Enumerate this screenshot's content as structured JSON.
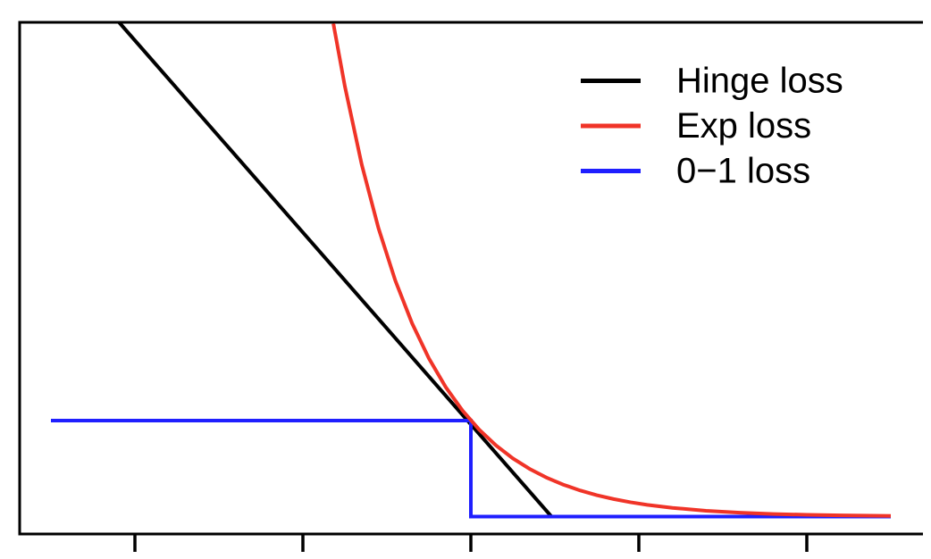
{
  "chart_data": {
    "type": "line",
    "title": "",
    "xlabel": "",
    "ylabel": "",
    "x_axis": {
      "ticks": [
        -2,
        -1,
        0,
        1,
        2
      ],
      "tick_labels": [
        "",
        "",
        "",
        "",
        ""
      ],
      "visible_range": [
        -2.69,
        2.69
      ]
    },
    "y_axis": {
      "ticks": [],
      "tick_labels": [],
      "visible_range": [
        -0.19,
        5.33
      ]
    },
    "grid": false,
    "background": "#ffffff",
    "axis_color": "#000000",
    "legend_position": "top-right",
    "series": [
      {
        "name": "Hinge loss",
        "color": "#000000",
        "formula": "max(0, 1 - 2x)",
        "points": [
          [
            -2.095,
            5.15
          ],
          [
            0.48,
            0
          ],
          [
            2.5,
            0
          ]
        ]
      },
      {
        "name": "Exp loss",
        "color": "#f03428",
        "formula": "exp(-2x)",
        "points": [
          [
            -0.8185,
            5.135
          ],
          [
            -0.75,
            4.4817
          ],
          [
            -0.65,
            3.6693
          ],
          [
            -0.55,
            3.0042
          ],
          [
            -0.45,
            2.4596
          ],
          [
            -0.35,
            2.0138
          ],
          [
            -0.25,
            1.6487
          ],
          [
            -0.15,
            1.3499
          ],
          [
            -0.05,
            1.1052
          ],
          [
            0.05,
            0.9048
          ],
          [
            0.15,
            0.7408
          ],
          [
            0.25,
            0.6065
          ],
          [
            0.35,
            0.4966
          ],
          [
            0.45,
            0.4066
          ],
          [
            0.55,
            0.3329
          ],
          [
            0.65,
            0.2725
          ],
          [
            0.75,
            0.2231
          ],
          [
            0.85,
            0.1827
          ],
          [
            0.95,
            0.1496
          ],
          [
            1.05,
            0.1225
          ],
          [
            1.2,
            0.0907
          ],
          [
            1.4,
            0.0608
          ],
          [
            1.6,
            0.0408
          ],
          [
            1.8,
            0.0273
          ],
          [
            2.0,
            0.0183
          ],
          [
            2.2,
            0.0123
          ],
          [
            2.5,
            0.0067
          ]
        ]
      },
      {
        "name": "0−1 loss",
        "color": "#1f1fff",
        "formula": "x < 0 ? 1 : 0",
        "points": [
          [
            -2.5,
            1
          ],
          [
            0,
            1
          ],
          [
            0,
            0
          ],
          [
            2.5,
            0
          ]
        ]
      }
    ],
    "legend": [
      {
        "label": "Hinge loss",
        "color": "#000000"
      },
      {
        "label": "Exp loss",
        "color": "#f03428"
      },
      {
        "label": "0−1 loss",
        "color": "#1f1fff"
      }
    ]
  }
}
